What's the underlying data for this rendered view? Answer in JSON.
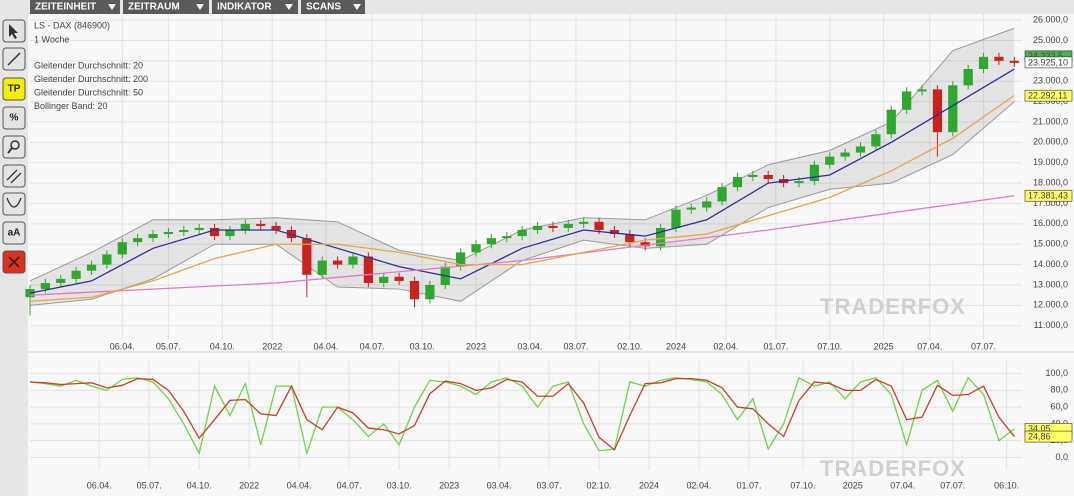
{
  "toolbar": {
    "tabs": [
      "ZEITEINHEIT",
      "ZEITRAUM",
      "INDIKATOR",
      "SCANS"
    ]
  },
  "sidebar": {
    "buttons": [
      "TP",
      "%",
      "aA"
    ]
  },
  "watermark": "TRADERFOX",
  "chart_data": [
    {
      "type": "candlestick",
      "title": "LS - DAX (846900)",
      "subtitle": "1 Woche",
      "x": [
        0,
        4,
        8,
        12,
        16,
        20,
        24,
        28,
        32,
        36,
        40,
        44,
        48,
        52,
        56,
        60,
        64,
        68,
        72,
        76,
        80,
        84,
        88,
        92,
        96,
        100,
        104,
        108,
        112,
        116,
        120,
        124,
        128,
        132,
        136,
        140,
        144,
        148,
        152,
        156,
        160,
        164,
        168,
        172,
        176,
        180,
        184,
        188,
        192,
        196,
        200,
        204,
        208,
        212,
        216,
        220,
        224,
        228,
        232,
        236,
        240,
        244,
        248,
        252,
        256
      ],
      "open": [
        12400,
        12800,
        13100,
        13300,
        13700,
        14000,
        14500,
        15100,
        15300,
        15500,
        15600,
        15700,
        15800,
        15400,
        15700,
        16000,
        15900,
        15700,
        15300,
        13500,
        14200,
        14000,
        14400,
        13100,
        13400,
        13200,
        12300,
        13000,
        13900,
        14600,
        15000,
        15300,
        15400,
        15700,
        15900,
        15800,
        16000,
        16100,
        15700,
        15500,
        15100,
        14900,
        15800,
        16700,
        16800,
        17100,
        17800,
        18300,
        18400,
        18200,
        18000,
        18100,
        18900,
        19300,
        19500,
        19800,
        20400,
        21600,
        22500,
        22600,
        20500,
        22800,
        23600,
        24200,
        24000
      ],
      "high": [
        13000,
        13300,
        13500,
        13900,
        14200,
        14700,
        15300,
        15500,
        15700,
        15800,
        15900,
        16000,
        16000,
        15900,
        16200,
        16200,
        16100,
        15900,
        15500,
        14400,
        14400,
        14600,
        14600,
        13600,
        13600,
        13400,
        13200,
        14100,
        14800,
        15200,
        15500,
        15600,
        15900,
        16100,
        16100,
        16200,
        16300,
        16300,
        15900,
        15700,
        15300,
        16000,
        16900,
        17000,
        17300,
        18000,
        18500,
        18600,
        18600,
        18400,
        18300,
        19100,
        19500,
        19700,
        20000,
        20600,
        21800,
        22700,
        22800,
        22800,
        23000,
        23800,
        24400,
        24400,
        24200
      ],
      "low": [
        11500,
        12600,
        12900,
        13100,
        13500,
        13800,
        14300,
        14900,
        15100,
        15300,
        15400,
        15500,
        15200,
        15200,
        15500,
        15700,
        15500,
        15100,
        12400,
        13300,
        13800,
        13800,
        12900,
        12900,
        13000,
        11900,
        12100,
        12800,
        13700,
        14400,
        14800,
        15100,
        15200,
        15500,
        15600,
        15600,
        15800,
        15500,
        15300,
        14900,
        14700,
        14700,
        15600,
        16500,
        16600,
        16900,
        17600,
        18100,
        18000,
        17800,
        17800,
        17900,
        18700,
        19100,
        19300,
        19600,
        20200,
        21400,
        22300,
        19300,
        20300,
        22600,
        23400,
        23800,
        23700
      ],
      "close": [
        12800,
        13100,
        13300,
        13700,
        14000,
        14500,
        15100,
        15300,
        15500,
        15600,
        15700,
        15800,
        15400,
        15700,
        16000,
        15900,
        15700,
        15300,
        13500,
        14200,
        14000,
        14400,
        13100,
        13400,
        13200,
        12300,
        13000,
        13900,
        14600,
        15000,
        15300,
        15400,
        15700,
        15900,
        15800,
        16000,
        16100,
        15700,
        15500,
        15100,
        14900,
        15800,
        16700,
        16800,
        17100,
        17800,
        18300,
        18400,
        18200,
        18000,
        18100,
        18900,
        19300,
        19500,
        19800,
        20400,
        21600,
        22500,
        22600,
        20500,
        22800,
        23600,
        24200,
        24000,
        23900
      ],
      "up_color": "#2ea82e",
      "down_color": "#c8231f",
      "series": [
        {
          "name": "Gleitender Durchschnitt: 20",
          "color": "#2b2f9e",
          "x": [
            0,
            16,
            32,
            48,
            64,
            80,
            96,
            112,
            128,
            144,
            160,
            176,
            192,
            208,
            224,
            240,
            256
          ],
          "values": [
            12600,
            13200,
            14800,
            15700,
            15700,
            14800,
            13900,
            13300,
            14800,
            15700,
            15400,
            16200,
            18000,
            18400,
            20000,
            21800,
            23600
          ]
        },
        {
          "name": "Gleitender Durchschnitt: 200",
          "color": "#e27ac8",
          "x": [
            0,
            64,
            128,
            192,
            256
          ],
          "values": [
            12500,
            13100,
            14200,
            15700,
            17380
          ]
        },
        {
          "name": "Gleitender Durchschnitt: 50",
          "color": "#eaa647",
          "x": [
            0,
            16,
            32,
            48,
            64,
            80,
            96,
            112,
            128,
            144,
            160,
            176,
            192,
            208,
            224,
            240,
            256
          ],
          "values": [
            12200,
            12400,
            13200,
            14300,
            15000,
            15000,
            14600,
            14000,
            14000,
            14600,
            15200,
            15500,
            16400,
            17300,
            18600,
            20200,
            22300
          ]
        }
      ],
      "band": {
        "name": "Bollinger Band: 20",
        "color": "#9a9a9a",
        "x": [
          0,
          16,
          32,
          48,
          64,
          80,
          96,
          112,
          128,
          144,
          160,
          176,
          192,
          208,
          224,
          240,
          256
        ],
        "upper": [
          13200,
          14600,
          16200,
          16200,
          16300,
          16100,
          14700,
          14200,
          15700,
          16300,
          16200,
          17400,
          18900,
          19600,
          21000,
          24500,
          25600
        ],
        "lower": [
          12000,
          12300,
          13300,
          15000,
          15000,
          12900,
          12800,
          12200,
          14200,
          15200,
          14800,
          15000,
          16800,
          17700,
          18000,
          19400,
          22000
        ]
      },
      "tags": [
        {
          "value": 24222.5,
          "label": "24.222,5",
          "color": "#4caf50"
        },
        {
          "value": 23925.1,
          "label": "23.925,10",
          "color": "#ffffff"
        },
        {
          "value": 22292.11,
          "label": "22.292,11",
          "color": "#ffff66"
        },
        {
          "value": 17381.43,
          "label": "17.381,43",
          "color": "#ffff66"
        }
      ],
      "xlim": [
        0,
        258
      ],
      "ylim": [
        10300,
        26300
      ],
      "grid": true,
      "xticks": [
        {
          "value": 24,
          "label": "06.04."
        },
        {
          "value": 36,
          "label": "05.07."
        },
        {
          "value": 50,
          "label": "04.10."
        },
        {
          "value": 63,
          "label": "2022"
        },
        {
          "value": 77,
          "label": "04.04."
        },
        {
          "value": 89,
          "label": "04.07."
        },
        {
          "value": 102,
          "label": "03.10."
        },
        {
          "value": 116,
          "label": "2023"
        },
        {
          "value": 130,
          "label": "03.04."
        },
        {
          "value": 142,
          "label": "03.07."
        },
        {
          "value": 156,
          "label": "02.10."
        },
        {
          "value": 168,
          "label": "2024"
        },
        {
          "value": 181,
          "label": "02.04."
        },
        {
          "value": 194,
          "label": "01.07."
        },
        {
          "value": 208,
          "label": "07.10."
        },
        {
          "value": 222,
          "label": "2025"
        },
        {
          "value": 234,
          "label": "07.04."
        },
        {
          "value": 248,
          "label": "07.07."
        }
      ],
      "yticks": [
        {
          "value": 11000,
          "label": "11.000,0"
        },
        {
          "value": 12000,
          "label": "12.000,0"
        },
        {
          "value": 13000,
          "label": "13.000,0"
        },
        {
          "value": 14000,
          "label": "14.000,0"
        },
        {
          "value": 15000,
          "label": "15.000,0"
        },
        {
          "value": 16000,
          "label": "16.000,0"
        },
        {
          "value": 17000,
          "label": "17.000,0"
        },
        {
          "value": 18000,
          "label": "18.000,0"
        },
        {
          "value": 19000,
          "label": "19.000,0"
        },
        {
          "value": 20000,
          "label": "20.000,0"
        },
        {
          "value": 21000,
          "label": "21.000,0"
        },
        {
          "value": 22000,
          "label": "22.000,0"
        },
        {
          "value": 23000,
          "label": "23.000,0"
        },
        {
          "value": 24000,
          "label": "24.000,0"
        },
        {
          "value": 25000,
          "label": "25.000,0"
        },
        {
          "value": 26000,
          "label": "26.000,0"
        }
      ]
    },
    {
      "type": "line",
      "x": [
        0,
        4,
        8,
        12,
        16,
        20,
        24,
        28,
        32,
        36,
        40,
        44,
        48,
        52,
        56,
        60,
        64,
        68,
        72,
        76,
        80,
        84,
        88,
        92,
        96,
        100,
        104,
        108,
        112,
        116,
        120,
        124,
        128,
        132,
        136,
        140,
        144,
        148,
        152,
        156,
        160,
        164,
        168,
        172,
        176,
        180,
        184,
        188,
        192,
        196,
        200,
        204,
        208,
        212,
        216,
        220,
        224,
        228,
        232,
        236,
        240,
        244,
        248,
        252,
        256
      ],
      "series": [
        {
          "color": "#6fd44a",
          "values": [
            90,
            88,
            85,
            92,
            85,
            80,
            93,
            95,
            90,
            70,
            40,
            5,
            85,
            50,
            88,
            15,
            85,
            85,
            5,
            60,
            60,
            45,
            25,
            40,
            15,
            60,
            92,
            90,
            85,
            75,
            90,
            95,
            85,
            60,
            85,
            90,
            40,
            8,
            10,
            90,
            85,
            92,
            95,
            93,
            90,
            75,
            45,
            70,
            10,
            40,
            95,
            85,
            90,
            70,
            90,
            95,
            75,
            15,
            80,
            92,
            55,
            95,
            75,
            20,
            34.05
          ]
        },
        {
          "color": "#c8402a",
          "values": [
            90,
            89,
            87,
            88,
            89,
            83,
            86,
            94,
            93,
            80,
            55,
            23,
            45,
            68,
            69,
            52,
            50,
            85,
            45,
            33,
            60,
            53,
            35,
            33,
            28,
            38,
            76,
            91,
            88,
            80,
            83,
            93,
            90,
            73,
            73,
            88,
            65,
            24,
            9,
            50,
            88,
            89,
            94,
            94,
            92,
            83,
            60,
            58,
            40,
            25,
            68,
            90,
            88,
            80,
            80,
            93,
            85,
            45,
            48,
            86,
            74,
            75,
            85,
            48,
            24.86
          ]
        }
      ],
      "tags": [
        {
          "value": 34.05,
          "label": "34,05",
          "color": "#ffff66"
        },
        {
          "value": 24.86,
          "label": "24,86",
          "color": "#ffff66"
        }
      ],
      "xlim": [
        0,
        258
      ],
      "ylim": [
        -15,
        115
      ],
      "grid": true,
      "xticks": [
        {
          "value": 18,
          "label": "06.04."
        },
        {
          "value": 31,
          "label": "05.07."
        },
        {
          "value": 44,
          "label": "04.10."
        },
        {
          "value": 57,
          "label": "2022"
        },
        {
          "value": 70,
          "label": "04.04."
        },
        {
          "value": 83,
          "label": "04.07."
        },
        {
          "value": 96,
          "label": "03.10."
        },
        {
          "value": 109,
          "label": "2023"
        },
        {
          "value": 122,
          "label": "03.04."
        },
        {
          "value": 135,
          "label": "03.07."
        },
        {
          "value": 148,
          "label": "02.10."
        },
        {
          "value": 161,
          "label": "2024"
        },
        {
          "value": 174,
          "label": "02.04."
        },
        {
          "value": 187,
          "label": "01.07."
        },
        {
          "value": 201,
          "label": "07.10."
        },
        {
          "value": 214,
          "label": "2025"
        },
        {
          "value": 227,
          "label": "07.04."
        },
        {
          "value": 240,
          "label": "07.07."
        },
        {
          "value": 254,
          "label": "06.10."
        }
      ],
      "yticks": [
        {
          "value": 0,
          "label": "0,0"
        },
        {
          "value": 20,
          "label": "20,0"
        },
        {
          "value": 40,
          "label": "40,0"
        },
        {
          "value": 60,
          "label": "60,0"
        },
        {
          "value": 80,
          "label": "80,0"
        },
        {
          "value": 100,
          "label": "100,0"
        }
      ]
    }
  ]
}
